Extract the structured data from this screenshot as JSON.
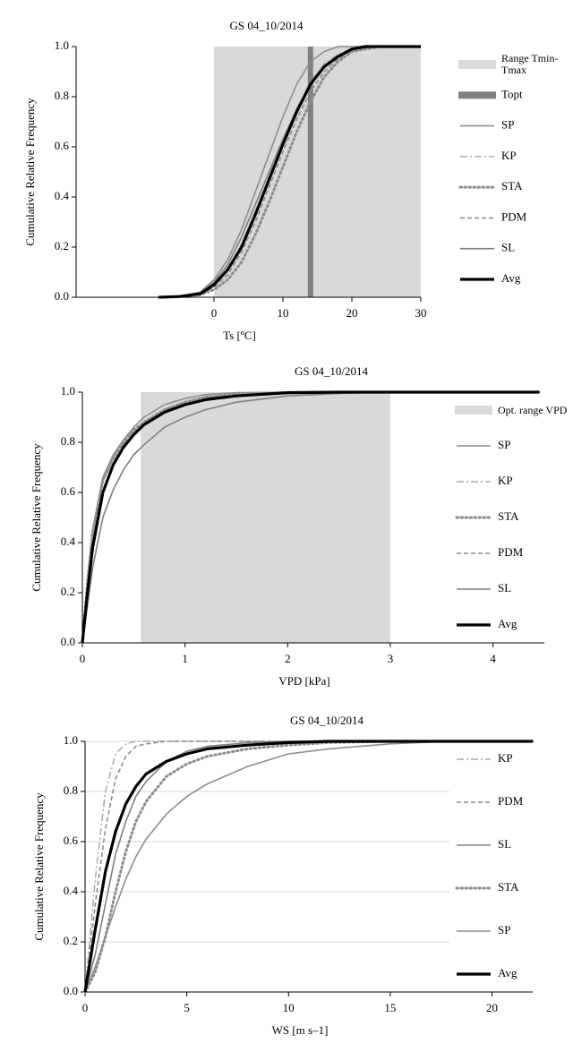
{
  "chart_data": [
    {
      "type": "line",
      "title": "GS 04_10/2014",
      "x_label": "Ts [ºC]",
      "y_label": "Cumulative Relative Frequency",
      "xlim": [
        -20,
        30
      ],
      "xticks": [
        0,
        10,
        20,
        30
      ],
      "ylim": [
        0,
        1
      ],
      "yticks": [
        {
          "value": 0,
          "label": "0.0"
        },
        0.2,
        0.4,
        0.6,
        0.8,
        {
          "value": 1,
          "label": "1.0"
        }
      ],
      "grid": false,
      "range": {
        "name": "Range Tmin-Tmax",
        "from": 0,
        "to": 30,
        "color": "#d9d9d9"
      },
      "vline": {
        "name": "Topt",
        "value": 14,
        "color": "#808080"
      },
      "x": [
        -8,
        -5,
        -2,
        0,
        2,
        4,
        6,
        8,
        10,
        12,
        14,
        16,
        18,
        20,
        22,
        24,
        26,
        28,
        30
      ],
      "series": [
        {
          "name": "SP",
          "color": "#8c8c8c",
          "style": "solid",
          "values": [
            0,
            0.005,
            0.02,
            0.07,
            0.15,
            0.27,
            0.42,
            0.57,
            0.72,
            0.85,
            0.94,
            0.98,
            1,
            1,
            1,
            1,
            1,
            1,
            1
          ]
        },
        {
          "name": "KP",
          "color": "#a6a6a6",
          "style": "dashdot",
          "values": [
            0,
            0.004,
            0.015,
            0.05,
            0.11,
            0.21,
            0.34,
            0.48,
            0.62,
            0.75,
            0.86,
            0.93,
            0.97,
            0.99,
            1,
            1,
            1,
            1,
            1
          ]
        },
        {
          "name": "STA",
          "color": "#8c8c8c",
          "style": "dotted",
          "values": [
            0,
            0.002,
            0.01,
            0.03,
            0.07,
            0.14,
            0.25,
            0.38,
            0.52,
            0.66,
            0.78,
            0.88,
            0.94,
            0.98,
            0.99,
            1,
            1,
            1,
            1
          ]
        },
        {
          "name": "PDM",
          "color": "#8c8c8c",
          "style": "dashed",
          "values": [
            0,
            0.003,
            0.012,
            0.04,
            0.09,
            0.18,
            0.3,
            0.44,
            0.58,
            0.71,
            0.82,
            0.9,
            0.95,
            0.98,
            0.995,
            1,
            1,
            1,
            1
          ]
        },
        {
          "name": "SL",
          "color": "#7f7f7f",
          "style": "solid",
          "values": [
            0,
            0.005,
            0.018,
            0.06,
            0.13,
            0.24,
            0.37,
            0.5,
            0.63,
            0.75,
            0.85,
            0.92,
            0.96,
            0.99,
            1,
            1,
            1,
            1,
            1
          ]
        },
        {
          "name": "Avg",
          "color": "#000000",
          "style": "bold",
          "values": [
            0,
            0.003,
            0.014,
            0.05,
            0.11,
            0.2,
            0.33,
            0.47,
            0.61,
            0.74,
            0.85,
            0.92,
            0.96,
            0.99,
            1,
            1,
            1,
            1,
            1
          ]
        }
      ]
    },
    {
      "type": "line",
      "title": "GS 04_10/2014",
      "x_label": "VPD [kPa]",
      "y_label": "Cumulative Relative Frequency",
      "xlim": [
        0,
        4.5
      ],
      "xticks": [
        0,
        1,
        2,
        3,
        4
      ],
      "ylim": [
        0,
        1
      ],
      "yticks": [
        {
          "value": 0,
          "label": "0.0"
        },
        0.2,
        0.4,
        0.6,
        0.8,
        {
          "value": 1,
          "label": "1.0"
        }
      ],
      "grid": false,
      "range": {
        "name": "Opt. range VPD",
        "from": 0.57,
        "to": 3,
        "color": "#d9d9d9"
      },
      "x": [
        0,
        0.05,
        0.1,
        0.2,
        0.3,
        0.4,
        0.5,
        0.6,
        0.8,
        1,
        1.2,
        1.5,
        2,
        2.5,
        3,
        4.45
      ],
      "series": [
        {
          "name": "SP",
          "color": "#8c8c8c",
          "style": "solid",
          "values": [
            0,
            0.25,
            0.45,
            0.66,
            0.75,
            0.81,
            0.86,
            0.9,
            0.95,
            0.975,
            0.99,
            0.998,
            1,
            1,
            1,
            1
          ]
        },
        {
          "name": "KP",
          "color": "#a6a6a6",
          "style": "dashdot",
          "values": [
            0,
            0.22,
            0.42,
            0.64,
            0.73,
            0.79,
            0.84,
            0.88,
            0.93,
            0.96,
            0.98,
            0.99,
            1,
            1,
            1,
            1
          ]
        },
        {
          "name": "STA",
          "color": "#8c8c8c",
          "style": "dotted",
          "values": [
            0,
            0.24,
            0.44,
            0.65,
            0.74,
            0.8,
            0.85,
            0.88,
            0.93,
            0.96,
            0.98,
            0.99,
            0.999,
            1,
            1,
            1
          ]
        },
        {
          "name": "PDM",
          "color": "#8c8c8c",
          "style": "dashed",
          "values": [
            0,
            0.23,
            0.43,
            0.65,
            0.74,
            0.79,
            0.84,
            0.88,
            0.93,
            0.96,
            0.98,
            0.99,
            0.999,
            1,
            1,
            1
          ]
        },
        {
          "name": "SL",
          "color": "#7f7f7f",
          "style": "solid",
          "values": [
            0,
            0.15,
            0.3,
            0.5,
            0.61,
            0.69,
            0.75,
            0.79,
            0.86,
            0.9,
            0.93,
            0.96,
            0.985,
            0.995,
            1,
            1
          ]
        },
        {
          "name": "Avg",
          "color": "#000000",
          "style": "bold",
          "values": [
            0,
            0.2,
            0.38,
            0.6,
            0.71,
            0.78,
            0.83,
            0.87,
            0.92,
            0.95,
            0.97,
            0.985,
            0.998,
            1,
            1,
            1
          ]
        }
      ]
    },
    {
      "type": "line",
      "title": "GS 04_10/2014",
      "x_label": "WS [m s–1]",
      "y_label": "Cumulative Relative Frequency",
      "xlim": [
        0,
        22
      ],
      "xticks": [
        0,
        5,
        10,
        15,
        20
      ],
      "ylim": [
        0,
        1
      ],
      "yticks": [
        {
          "value": 0,
          "label": "0.0"
        },
        0.2,
        0.4,
        0.6,
        0.8,
        {
          "value": 1,
          "label": "1.0"
        }
      ],
      "grid": true,
      "x": [
        0,
        0.5,
        1,
        1.5,
        2,
        2.5,
        3,
        4,
        5,
        6,
        8,
        10,
        12,
        15,
        18,
        22
      ],
      "series": [
        {
          "name": "KP",
          "color": "#a6a6a6",
          "style": "dashdot",
          "values": [
            0,
            0.45,
            0.8,
            0.95,
            0.99,
            1,
            1,
            1,
            1,
            1,
            1,
            1,
            1,
            1,
            1,
            1
          ]
        },
        {
          "name": "PDM",
          "color": "#8c8c8c",
          "style": "dashed",
          "values": [
            0,
            0.35,
            0.65,
            0.85,
            0.94,
            0.98,
            0.99,
            1,
            1,
            1,
            1,
            1,
            1,
            1,
            1,
            1
          ]
        },
        {
          "name": "SL",
          "color": "#7f7f7f",
          "style": "solid",
          "values": [
            0,
            0.15,
            0.35,
            0.55,
            0.68,
            0.78,
            0.84,
            0.92,
            0.96,
            0.98,
            0.995,
            1,
            1,
            1,
            1,
            1
          ]
        },
        {
          "name": "STA",
          "color": "#8c8c8c",
          "style": "dotted",
          "values": [
            0,
            0.08,
            0.22,
            0.4,
            0.56,
            0.68,
            0.76,
            0.86,
            0.91,
            0.94,
            0.97,
            0.985,
            0.995,
            1,
            1,
            1
          ]
        },
        {
          "name": "SP",
          "color": "#8c8c8c",
          "style": "solid",
          "values": [
            0,
            0.1,
            0.22,
            0.34,
            0.45,
            0.54,
            0.61,
            0.71,
            0.78,
            0.83,
            0.9,
            0.95,
            0.97,
            0.99,
            1,
            1
          ]
        },
        {
          "name": "Avg",
          "color": "#000000",
          "style": "bold",
          "values": [
            0,
            0.25,
            0.48,
            0.64,
            0.75,
            0.82,
            0.87,
            0.92,
            0.95,
            0.97,
            0.985,
            0.995,
            1,
            1,
            1,
            1
          ]
        }
      ]
    }
  ]
}
